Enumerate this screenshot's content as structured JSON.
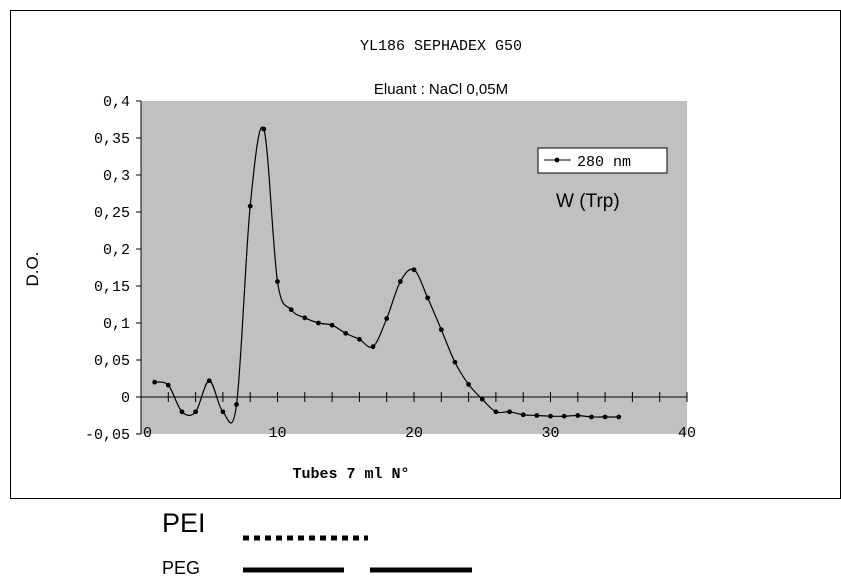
{
  "chart_data": {
    "type": "line",
    "title": "YL186   SEPHADEX   G50",
    "subtitle": "Eluant : NaCl 0,05M",
    "xlabel": "Tubes 7 ml N°",
    "ylabel": "D.O.",
    "xlim": [
      0,
      40
    ],
    "ylim": [
      -0.05,
      0.4
    ],
    "x_ticks": [
      0,
      10,
      20,
      30,
      40
    ],
    "x_tick_labels": [
      "0",
      "10",
      "20",
      "30",
      "40"
    ],
    "y_ticks": [
      -0.05,
      0,
      0.05,
      0.1,
      0.15,
      0.2,
      0.25,
      0.3,
      0.35,
      0.4
    ],
    "y_tick_labels": [
      "-0,05",
      "0",
      "0,05",
      "0,1",
      "0,15",
      "0,2",
      "0,25",
      "0,3",
      "0,35",
      "0,4"
    ],
    "legend_position": "top-right",
    "annotation": "W (Trp)",
    "colors": {
      "plot_area": "#c0c0c0",
      "line": "#000000"
    },
    "series": [
      {
        "name": "280 nm",
        "x": [
          1,
          2,
          3,
          4,
          5,
          6,
          7,
          8,
          9,
          10,
          11,
          12,
          13,
          14,
          15,
          16,
          17,
          18,
          19,
          20,
          21,
          22,
          23,
          24,
          25,
          26,
          27,
          28,
          29,
          30,
          31,
          32,
          33,
          34,
          35
        ],
        "values": [
          0.02,
          0.016,
          -0.02,
          -0.02,
          0.022,
          -0.02,
          -0.01,
          0.258,
          0.362,
          0.156,
          0.118,
          0.107,
          0.1,
          0.097,
          0.086,
          0.078,
          0.068,
          0.106,
          0.156,
          0.172,
          0.134,
          0.091,
          0.047,
          0.017,
          -0.003,
          -0.02,
          -0.02,
          -0.024,
          -0.025,
          -0.026,
          -0.026,
          -0.025,
          -0.027,
          -0.027,
          -0.027
        ]
      }
    ]
  },
  "legend_extra": [
    {
      "label": "PEI",
      "style": "dotted"
    },
    {
      "label": "PEG",
      "style": "dashed"
    }
  ]
}
